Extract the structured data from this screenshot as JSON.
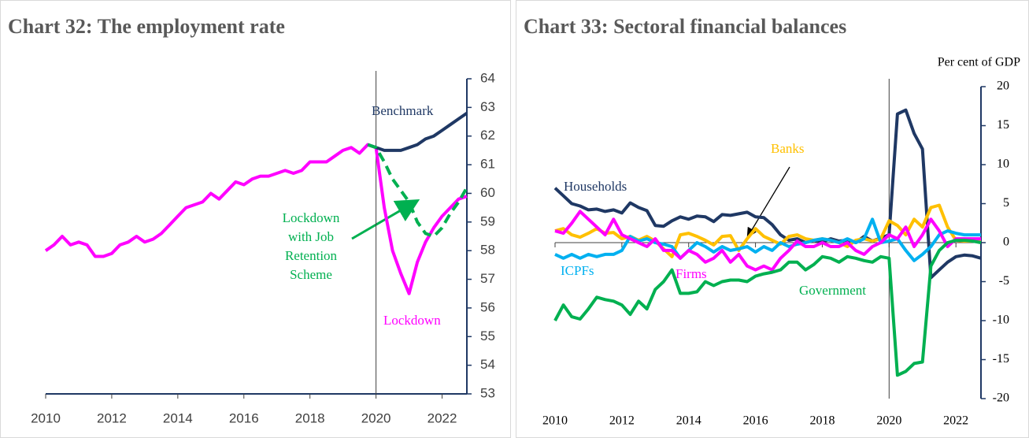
{
  "chart_data": [
    {
      "type": "line",
      "title": "Chart 32:  The employment rate",
      "x": [
        2010,
        2010.25,
        2010.5,
        2010.75,
        2011,
        2011.25,
        2011.5,
        2011.75,
        2012,
        2012.25,
        2012.5,
        2012.75,
        2013,
        2013.25,
        2013.5,
        2013.75,
        2014,
        2014.25,
        2014.5,
        2014.75,
        2015,
        2015.25,
        2015.5,
        2015.75,
        2016,
        2016.25,
        2016.5,
        2016.75,
        2017,
        2017.25,
        2017.5,
        2017.75,
        2018,
        2018.25,
        2018.5,
        2018.75,
        2019,
        2019.25,
        2019.5,
        2019.75,
        2020,
        2020.25,
        2020.5,
        2020.75,
        2021,
        2021.25,
        2021.5,
        2021.75,
        2022,
        2022.25,
        2022.5,
        2022.75
      ],
      "xlim": [
        2010,
        2022.75
      ],
      "xticks": [
        2010,
        2012,
        2014,
        2016,
        2018,
        2020,
        2022
      ],
      "ylim": [
        53,
        64
      ],
      "yticks": [
        53,
        54,
        55,
        56,
        57,
        58,
        59,
        60,
        61,
        62,
        63,
        64
      ],
      "y_axis_side": "right",
      "vline": 2020,
      "series": [
        {
          "name": "Lockdown",
          "color": "#ff00ff",
          "dashed": false,
          "values": [
            58.0,
            58.2,
            58.5,
            58.2,
            58.3,
            58.2,
            57.8,
            57.8,
            57.9,
            58.2,
            58.3,
            58.5,
            58.3,
            58.4,
            58.6,
            58.9,
            59.2,
            59.5,
            59.6,
            59.7,
            60.0,
            59.8,
            60.1,
            60.4,
            60.3,
            60.5,
            60.6,
            60.6,
            60.7,
            60.8,
            60.7,
            60.8,
            61.1,
            61.1,
            61.1,
            61.3,
            61.5,
            61.6,
            61.4,
            61.7,
            61.6,
            59.5,
            58.0,
            57.2,
            56.5,
            57.6,
            58.3,
            58.8,
            59.2,
            59.5,
            59.8,
            59.9
          ]
        },
        {
          "name": "Benchmark",
          "color": "#1f3864",
          "dashed": false,
          "values": [
            null,
            null,
            null,
            null,
            null,
            null,
            null,
            null,
            null,
            null,
            null,
            null,
            null,
            null,
            null,
            null,
            null,
            null,
            null,
            null,
            null,
            null,
            null,
            null,
            null,
            null,
            null,
            null,
            null,
            null,
            null,
            null,
            null,
            null,
            null,
            null,
            null,
            null,
            null,
            61.7,
            61.6,
            61.5,
            61.5,
            61.5,
            61.6,
            61.7,
            61.9,
            62.0,
            62.2,
            62.4,
            62.6,
            62.8
          ]
        },
        {
          "name": [
            "Lockdown",
            "with Job",
            "Retention",
            "Scheme"
          ],
          "color": "#00b050",
          "dashed": true,
          "values": [
            null,
            null,
            null,
            null,
            null,
            null,
            null,
            null,
            null,
            null,
            null,
            null,
            null,
            null,
            null,
            null,
            null,
            null,
            null,
            null,
            null,
            null,
            null,
            null,
            null,
            null,
            null,
            null,
            null,
            null,
            null,
            null,
            null,
            null,
            null,
            null,
            null,
            null,
            null,
            61.7,
            61.6,
            61.1,
            60.5,
            60.1,
            59.7,
            59.0,
            58.6,
            58.5,
            58.8,
            59.3,
            59.7,
            60.2
          ]
        }
      ]
    },
    {
      "type": "line",
      "title": "Chart 33:  Sectoral financial balances",
      "y_label": "Per cent of GDP",
      "x": [
        2010,
        2010.25,
        2010.5,
        2010.75,
        2011,
        2011.25,
        2011.5,
        2011.75,
        2012,
        2012.25,
        2012.5,
        2012.75,
        2013,
        2013.25,
        2013.5,
        2013.75,
        2014,
        2014.25,
        2014.5,
        2014.75,
        2015,
        2015.25,
        2015.5,
        2015.75,
        2016,
        2016.25,
        2016.5,
        2016.75,
        2017,
        2017.25,
        2017.5,
        2017.75,
        2018,
        2018.25,
        2018.5,
        2018.75,
        2019,
        2019.25,
        2019.5,
        2019.75,
        2020,
        2020.25,
        2020.5,
        2020.75,
        2021,
        2021.25,
        2021.5,
        2021.75,
        2022,
        2022.25,
        2022.5,
        2022.75
      ],
      "xlim": [
        2010,
        2022.75
      ],
      "xticks": [
        2010,
        2012,
        2014,
        2016,
        2018,
        2020,
        2022
      ],
      "ylim": [
        -20,
        20
      ],
      "yticks": [
        -20,
        -15,
        -10,
        -5,
        0,
        5,
        10,
        15,
        20
      ],
      "y_axis_side": "right",
      "vline": 2020,
      "series": [
        {
          "name": "Households",
          "color": "#1f3864",
          "dashed": false,
          "values": [
            7.0,
            6.0,
            5.0,
            4.7,
            4.2,
            4.3,
            4.0,
            4.2,
            3.8,
            5.1,
            4.5,
            4.1,
            2.2,
            2.1,
            2.8,
            3.3,
            3.0,
            3.4,
            3.3,
            2.7,
            3.6,
            3.5,
            3.7,
            3.9,
            3.3,
            3.2,
            2.3,
            1.0,
            0.3,
            0.5,
            0.0,
            0.3,
            0.1,
            0.5,
            0.2,
            0.3,
            0.0,
            0.8,
            0.2,
            0.6,
            1.0,
            16.5,
            17.0,
            14.0,
            12.0,
            -4.5,
            -3.5,
            -2.5,
            -1.8,
            -1.6,
            -1.7,
            -2.0
          ]
        },
        {
          "name": "Banks",
          "color": "#ffc000",
          "dashed": false,
          "values": [
            1.5,
            1.8,
            1.0,
            0.7,
            1.2,
            1.8,
            1.2,
            1.3,
            0.5,
            0.8,
            0.3,
            0.8,
            0.2,
            -0.8,
            -1.8,
            1.0,
            1.2,
            0.8,
            0.3,
            -0.3,
            0.8,
            0.9,
            -1.0,
            0.5,
            1.8,
            0.8,
            0.3,
            -0.2,
            0.8,
            1.0,
            0.5,
            0.3,
            0.5,
            0.3,
            0.0,
            -0.5,
            0.3,
            0.5,
            0.2,
            0.5,
            2.8,
            2.2,
            1.0,
            3.0,
            2.0,
            4.5,
            4.8,
            2.0,
            0.3,
            0.2,
            0.2,
            0.2
          ]
        },
        {
          "name": "ICPFs",
          "color": "#00b0f0",
          "dashed": false,
          "values": [
            -1.5,
            -2.0,
            -1.5,
            -2.0,
            -1.5,
            -1.8,
            -1.5,
            -1.5,
            -1.0,
            0.8,
            0.2,
            0.5,
            0.0,
            -0.2,
            -0.5,
            -2.0,
            -1.0,
            0.0,
            -0.5,
            -1.2,
            -0.5,
            -1.0,
            -0.8,
            -0.5,
            -1.2,
            -0.5,
            -1.0,
            0.0,
            -0.5,
            -0.2,
            0.0,
            0.3,
            0.5,
            0.3,
            0.0,
            0.5,
            0.0,
            0.5,
            3.0,
            0.0,
            0.2,
            0.5,
            -1.0,
            -2.3,
            -1.5,
            -0.5,
            1.0,
            1.5,
            1.2,
            1.0,
            1.0,
            1.0
          ]
        },
        {
          "name": "Firms",
          "color": "#ff00ff",
          "dashed": false,
          "values": [
            1.5,
            1.2,
            2.5,
            4.0,
            3.0,
            2.0,
            1.0,
            3.0,
            1.0,
            0.5,
            0.0,
            -0.5,
            0.5,
            -1.0,
            -1.0,
            -2.0,
            -1.0,
            -1.5,
            -2.5,
            -2.0,
            -1.0,
            -2.5,
            -1.5,
            -3.0,
            -3.5,
            -3.0,
            -3.5,
            -2.0,
            -1.0,
            0.2,
            -0.5,
            -0.5,
            0.0,
            -0.5,
            -0.5,
            0.0,
            -1.0,
            -1.5,
            -0.5,
            0.0,
            1.0,
            0.5,
            2.0,
            -0.5,
            1.0,
            3.0,
            1.5,
            -0.5,
            0.5,
            0.5,
            0.5,
            0.5
          ]
        },
        {
          "name": "Government",
          "color": "#00b050",
          "dashed": false,
          "values": [
            -10,
            -8,
            -9.5,
            -9.8,
            -8.5,
            -7,
            -7.3,
            -7.5,
            -8,
            -9.2,
            -7.5,
            -8.5,
            -6,
            -5,
            -3.5,
            -6.5,
            -6.5,
            -6.3,
            -5,
            -5.5,
            -5,
            -4.8,
            -4.8,
            -5,
            -4.3,
            -4,
            -3.8,
            -3.5,
            -2.5,
            -2.5,
            -3.5,
            -2.8,
            -1.8,
            -2,
            -2.5,
            -1.8,
            -2,
            -2.3,
            -2.5,
            -1.8,
            -2.0,
            -17.0,
            -16.5,
            -15.5,
            -15.3,
            -3.0,
            -1.0,
            0.0,
            0.3,
            0.3,
            0.2,
            0.0
          ]
        }
      ]
    }
  ]
}
